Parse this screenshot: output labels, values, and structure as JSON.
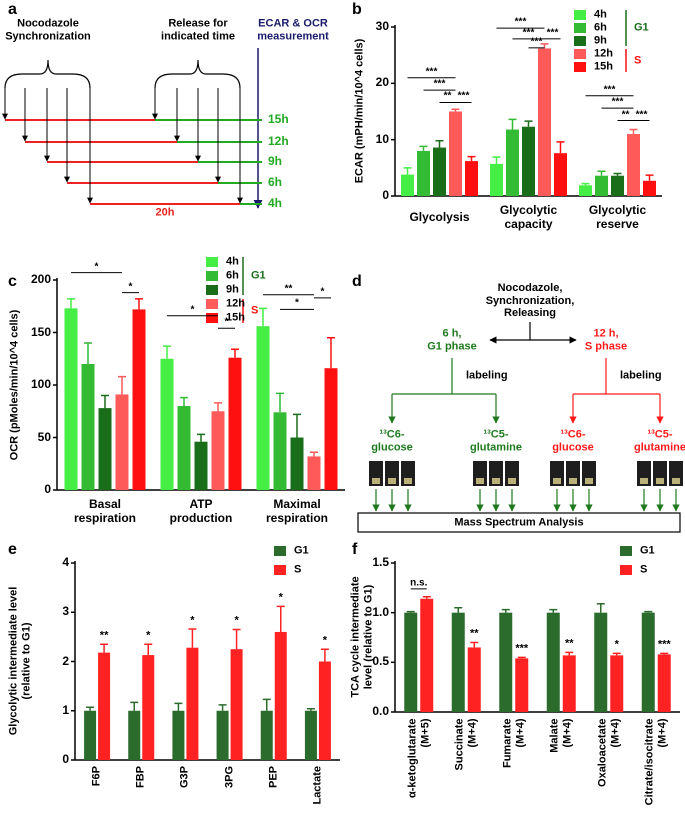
{
  "panel_labels": [
    "a",
    "b",
    "c",
    "d",
    "e",
    "f"
  ],
  "diagram_a": {
    "synchronization": "Nocodazole\nSynchronization",
    "release": "Release for\nindicated time",
    "measurement": "ECAR & OCR\nmeasurement",
    "rows": [
      "15h",
      "12h",
      "9h",
      "6h",
      "4h"
    ],
    "duration": "20h"
  },
  "diagram_d": {
    "title": "Nocodazole,\nSynchronization,\nReleasing",
    "branches": [
      {
        "phase": "6 h,\nG1 phase",
        "labeling": "labeling",
        "tracers": [
          "¹³C6-\nglucose",
          "¹³C5-\nglutamine"
        ]
      },
      {
        "phase": "12 h,\nS phase",
        "labeling": "labeling",
        "tracers": [
          "¹³C6-\nglucose",
          "¹³C5-\nglutamine"
        ]
      }
    ],
    "analysis": "Mass Spectrum Analysis"
  },
  "chart_data": [
    {
      "type": "bar",
      "y_label": "ECAR (mPH/min/10^4 cells)",
      "categories": [
        "Glycolysis",
        "Glycolytic\ncapacity",
        "Glycolytic\nreserve"
      ],
      "series": [
        {
          "name": "4h",
          "color": "#44ee44",
          "values": [
            3.8,
            5.7,
            1.9
          ],
          "errors": [
            1.2,
            1.2,
            0.3
          ]
        },
        {
          "name": "6h",
          "color": "#33bb33",
          "values": [
            8.0,
            11.8,
            3.6
          ],
          "errors": [
            0.8,
            1.8,
            0.8
          ]
        },
        {
          "name": "9h",
          "color": "#1a6e1a",
          "values": [
            8.6,
            12.3,
            3.6
          ],
          "errors": [
            1.2,
            1.0,
            0.4
          ]
        },
        {
          "name": "12h",
          "color": "#ff5a5a",
          "values": [
            15.0,
            26.2,
            11.0
          ],
          "errors": [
            0.4,
            0.8,
            0.8
          ]
        },
        {
          "name": "15h",
          "color": "#ff1010",
          "values": [
            6.2,
            7.6,
            2.7
          ],
          "errors": [
            0.8,
            2.0,
            1.0
          ]
        }
      ],
      "legend_groups": [
        "G1",
        "S"
      ],
      "annotations": [
        "***",
        "***",
        "**",
        "***",
        "***",
        "***",
        "***",
        "***",
        "***",
        "***",
        "**",
        "***"
      ],
      "ylim": [
        0,
        30
      ],
      "yticks": [
        0,
        10,
        20,
        30
      ]
    },
    {
      "type": "bar",
      "y_label": "OCR (pMoles/min/10^4 cells)",
      "categories": [
        "Basal\nrespiration",
        "ATP\nproduction",
        "Maximal\nrespiration"
      ],
      "series": [
        {
          "name": "4h",
          "color": "#44ee44",
          "values": [
            173,
            125,
            156
          ],
          "errors": [
            9,
            12,
            17
          ]
        },
        {
          "name": "6h",
          "color": "#33bb33",
          "values": [
            120,
            80,
            74
          ],
          "errors": [
            20,
            8,
            18
          ]
        },
        {
          "name": "9h",
          "color": "#1a6e1a",
          "values": [
            78,
            46,
            50
          ],
          "errors": [
            12,
            7,
            22
          ]
        },
        {
          "name": "12h",
          "color": "#ff5a5a",
          "values": [
            91,
            75,
            32
          ],
          "errors": [
            17,
            8,
            4
          ]
        },
        {
          "name": "15h",
          "color": "#ff1010",
          "values": [
            172,
            126,
            116
          ],
          "errors": [
            10,
            8,
            29
          ]
        }
      ],
      "legend_groups": [
        "G1",
        "S"
      ],
      "annotations": [
        "*",
        "*",
        "*",
        "*",
        "**",
        "*",
        "*"
      ],
      "ylim": [
        0,
        200
      ],
      "yticks": [
        0,
        50,
        100,
        150,
        200
      ]
    },
    {
      "type": "bar",
      "y_label": "Glycolytic intermediate level\n(relative to G1)",
      "categories": [
        "F6P",
        "FBP",
        "G3P",
        "3PG",
        "PEP",
        "Lactate"
      ],
      "series": [
        {
          "name": "G1",
          "color": "#2b6b2b",
          "values": [
            1.0,
            1.0,
            1.0,
            1.0,
            1.0,
            1.0
          ],
          "errors": [
            0.07,
            0.17,
            0.15,
            0.12,
            0.23,
            0.04
          ]
        },
        {
          "name": "S",
          "color": "#ff2222",
          "values": [
            2.18,
            2.13,
            2.28,
            2.25,
            2.6,
            2.0
          ],
          "errors": [
            0.17,
            0.22,
            0.38,
            0.4,
            0.52,
            0.25
          ]
        }
      ],
      "annotations": [
        "**",
        "*",
        "*",
        "*",
        "*",
        "*"
      ],
      "ylim": [
        0,
        4
      ],
      "yticks": [
        0,
        1,
        2,
        3,
        4
      ]
    },
    {
      "type": "bar",
      "y_label": "TCA cycle intermediate\nlevel (relative to G1)",
      "categories": [
        "α-ketoglutarate\n(M+5)",
        "Succinate\n(M+4)",
        "Fumarate\n(M+4)",
        "Malate\n(M+4)",
        "Oxaloacetate\n(M+4)",
        "Citrate/isocitrate\n(M+4)"
      ],
      "series": [
        {
          "name": "G1",
          "color": "#2b6b2b",
          "values": [
            1.0,
            1.0,
            1.0,
            1.0,
            1.0,
            1.0
          ],
          "errors": [
            0.01,
            0.05,
            0.03,
            0.03,
            0.09,
            0.01
          ]
        },
        {
          "name": "S",
          "color": "#ff2222",
          "values": [
            1.14,
            0.65,
            0.54,
            0.57,
            0.57,
            0.58
          ],
          "errors": [
            0.02,
            0.05,
            0.01,
            0.03,
            0.02,
            0.01
          ]
        }
      ],
      "annotations": [
        "n.s.",
        "**",
        "***",
        "**",
        "*",
        "***"
      ],
      "ylim": [
        0,
        1.5
      ],
      "yticks": [
        {
          "value": 0,
          "label": "0.0"
        },
        0.5,
        {
          "value": 1,
          "label": "1.0"
        },
        1.5
      ]
    }
  ]
}
